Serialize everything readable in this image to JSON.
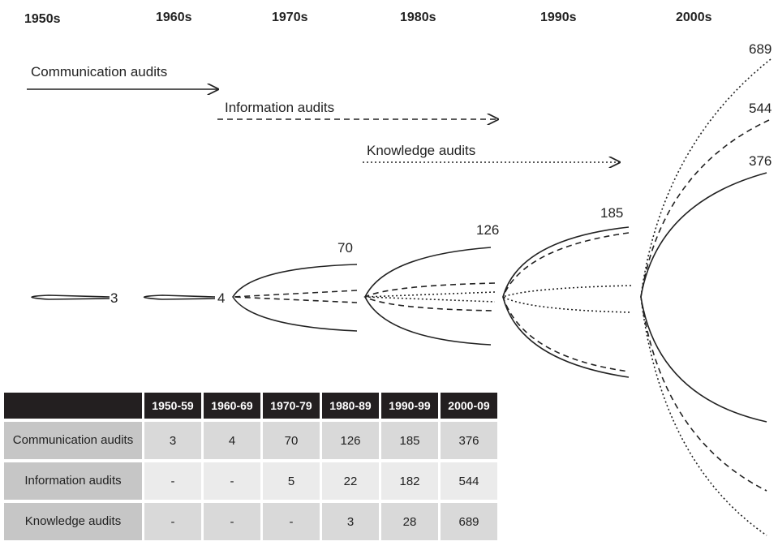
{
  "decades": [
    "1950s",
    "1960s",
    "1970s",
    "1980s",
    "1990s",
    "2000s"
  ],
  "arrows": [
    "Communication audits",
    "Information audits",
    "Knowledge audits"
  ],
  "table": {
    "header": [
      "1950-59",
      "1960-69",
      "1970-79",
      "1980-89",
      "1990-99",
      "2000-09"
    ],
    "rows": [
      [
        "Communication audits",
        3,
        4,
        70,
        126,
        185,
        376
      ],
      [
        "Information audits",
        "-",
        "-",
        5,
        22,
        182,
        544
      ],
      [
        "Knowledge audits",
        "-",
        "-",
        "-",
        3,
        28,
        689
      ]
    ]
  }
}
